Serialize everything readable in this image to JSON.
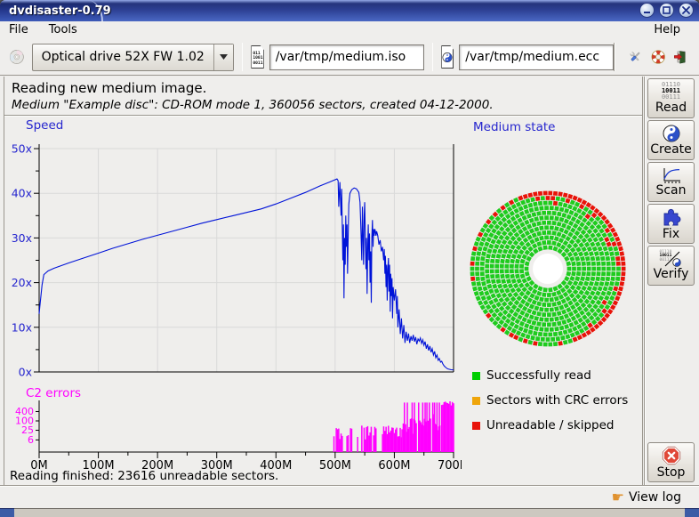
{
  "window": {
    "title": "dvdisaster-0.79"
  },
  "menu": {
    "file": "File",
    "tools": "Tools",
    "help": "Help"
  },
  "toolbar": {
    "drive": {
      "value": "Optical drive 52X FW 1.02"
    },
    "iso": {
      "value": "/var/tmp/medium.iso",
      "icon_lines": [
        "011",
        "10011",
        "00111"
      ]
    },
    "ecc": {
      "value": "/var/tmp/medium.ecc"
    }
  },
  "header": {
    "line1": "Reading new medium image.",
    "line2": "Medium \"Example disc\": CD-ROM mode 1, 360056 sectors, created 04-12-2000."
  },
  "sidebar": {
    "read": "Read",
    "create": "Create",
    "scan": "Scan",
    "fix": "Fix",
    "verify": "Verify",
    "stop": "Stop",
    "read_icon_lines": [
      "01110",
      "10011",
      "00111"
    ]
  },
  "status_line": "Reading finished: 23616 unreadable sectors.",
  "footer": {
    "view_log": "View log"
  },
  "colors": {
    "accent_blue": "#2525ce",
    "speed_line": "#0013d8",
    "c2_magenta": "#ff00ff",
    "grid": "#d9d9d9",
    "panel_bg": "#efeeec"
  },
  "chart_data": [
    {
      "type": "line",
      "title": "Speed",
      "color": "#0013d8",
      "label_color": "#2525ce",
      "x_range_M": [
        0,
        700
      ],
      "y_range": [
        0,
        50
      ],
      "grid": true,
      "y_ticks": [
        {
          "v": 0,
          "label": "0x"
        },
        {
          "v": 10,
          "label": "10x"
        },
        {
          "v": 20,
          "label": "20x"
        },
        {
          "v": 30,
          "label": "30x"
        },
        {
          "v": 40,
          "label": "40x"
        },
        {
          "v": 50,
          "label": "50x"
        }
      ],
      "x_ticks": [
        {
          "v": 0,
          "label": "0M"
        },
        {
          "v": 100,
          "label": "100M"
        },
        {
          "v": 200,
          "label": "200M"
        },
        {
          "v": 300,
          "label": "300M"
        },
        {
          "v": 400,
          "label": "400M"
        },
        {
          "v": 500,
          "label": "500M"
        },
        {
          "v": 600,
          "label": "600M"
        },
        {
          "v": 700,
          "label": "700M"
        }
      ],
      "points_M_speed": [
        [
          0,
          13
        ],
        [
          1,
          14.5
        ],
        [
          3,
          17
        ],
        [
          5,
          19.5
        ],
        [
          8,
          21.8
        ],
        [
          15,
          22.6
        ],
        [
          25,
          23.2
        ],
        [
          50,
          24.4
        ],
        [
          75,
          25.5
        ],
        [
          100,
          26.6
        ],
        [
          125,
          27.7
        ],
        [
          150,
          28.7
        ],
        [
          175,
          29.7
        ],
        [
          200,
          30.6
        ],
        [
          225,
          31.5
        ],
        [
          250,
          32.4
        ],
        [
          275,
          33.3
        ],
        [
          300,
          34.1
        ],
        [
          325,
          34.9
        ],
        [
          350,
          35.7
        ],
        [
          375,
          36.5
        ],
        [
          400,
          37.6
        ],
        [
          425,
          38.9
        ],
        [
          450,
          40.2
        ],
        [
          475,
          41.7
        ],
        [
          490,
          42.5
        ],
        [
          503,
          43.2
        ],
        [
          505,
          42.8
        ],
        [
          506,
          37
        ],
        [
          508,
          42.5
        ],
        [
          510,
          35
        ],
        [
          511,
          41
        ],
        [
          513,
          25
        ],
        [
          514,
          33
        ],
        [
          515,
          16.5
        ],
        [
          516,
          30
        ],
        [
          517,
          24
        ],
        [
          518,
          35
        ],
        [
          519,
          28
        ],
        [
          520,
          33
        ],
        [
          521,
          22
        ],
        [
          522,
          30
        ],
        [
          523,
          37.5
        ],
        [
          525,
          40
        ],
        [
          528,
          40.8
        ],
        [
          532,
          41.2
        ],
        [
          536,
          41
        ],
        [
          540,
          40.2
        ],
        [
          542,
          38
        ],
        [
          543,
          34
        ],
        [
          544,
          30
        ],
        [
          545,
          25
        ],
        [
          546,
          37
        ],
        [
          547,
          31
        ],
        [
          548,
          24
        ],
        [
          549,
          35
        ],
        [
          550,
          38
        ],
        [
          551,
          30
        ],
        [
          552,
          23
        ],
        [
          553,
          30
        ],
        [
          554,
          17.5
        ],
        [
          555,
          28
        ],
        [
          556,
          33
        ],
        [
          557,
          25
        ],
        [
          558,
          31
        ],
        [
          559,
          20
        ],
        [
          560,
          27
        ],
        [
          561,
          15.5
        ],
        [
          562,
          30
        ],
        [
          563,
          34
        ],
        [
          564,
          28
        ],
        [
          565,
          32
        ],
        [
          566,
          30.5
        ],
        [
          567,
          32
        ],
        [
          568,
          31.5
        ],
        [
          569,
          30.5
        ],
        [
          570,
          31.5
        ],
        [
          572,
          30.5
        ],
        [
          574,
          28.5
        ],
        [
          576,
          29.5
        ],
        [
          578,
          27
        ],
        [
          580,
          28
        ],
        [
          582,
          25
        ],
        [
          583,
          27.5
        ],
        [
          584,
          22
        ],
        [
          585,
          26
        ],
        [
          586,
          19
        ],
        [
          587,
          24
        ],
        [
          588,
          16
        ],
        [
          589,
          23
        ],
        [
          590,
          25.5
        ],
        [
          591,
          18
        ],
        [
          592,
          24
        ],
        [
          593,
          13.5
        ],
        [
          594,
          22
        ],
        [
          595,
          17
        ],
        [
          596,
          21
        ],
        [
          597,
          12
        ],
        [
          598,
          19
        ],
        [
          600,
          16
        ],
        [
          602,
          18.5
        ],
        [
          604,
          13
        ],
        [
          605,
          17
        ],
        [
          606,
          10
        ],
        [
          608,
          14
        ],
        [
          610,
          8.5
        ],
        [
          612,
          12
        ],
        [
          614,
          7.5
        ],
        [
          616,
          10.5
        ],
        [
          618,
          6.5
        ],
        [
          620,
          9
        ],
        [
          622,
          7
        ],
        [
          624,
          8.6
        ],
        [
          626,
          6.5
        ],
        [
          628,
          8
        ],
        [
          630,
          7
        ],
        [
          632,
          8.3
        ],
        [
          634,
          6.8
        ],
        [
          636,
          7.8
        ],
        [
          638,
          6.2
        ],
        [
          640,
          7.4
        ],
        [
          642,
          6.9
        ],
        [
          644,
          7.6
        ],
        [
          646,
          6.4
        ],
        [
          648,
          7.2
        ],
        [
          650,
          6
        ],
        [
          652,
          6.8
        ],
        [
          654,
          5.2
        ],
        [
          656,
          6.2
        ],
        [
          658,
          4.8
        ],
        [
          660,
          5.8
        ],
        [
          662,
          4.4
        ],
        [
          664,
          5.2
        ],
        [
          666,
          3.8
        ],
        [
          668,
          4.6
        ],
        [
          670,
          3.2
        ],
        [
          672,
          3.8
        ],
        [
          674,
          2.6
        ],
        [
          676,
          3
        ],
        [
          678,
          2.2
        ],
        [
          680,
          2.4
        ],
        [
          682,
          1.8
        ],
        [
          684,
          1.4
        ],
        [
          686,
          1.1
        ],
        [
          688,
          0.9
        ],
        [
          690,
          0.7
        ],
        [
          693,
          0.6
        ],
        [
          696,
          0.5
        ],
        [
          700,
          0.45
        ]
      ]
    },
    {
      "type": "bar",
      "title": "C2 errors",
      "color": "#ff00ff",
      "scale": "log",
      "x_range_M": [
        0,
        700
      ],
      "y_ticks": [
        {
          "v": 400,
          "label": "400"
        },
        {
          "v": 100,
          "label": "100"
        },
        {
          "v": 25,
          "label": "25"
        },
        {
          "v": 6,
          "label": "6"
        }
      ],
      "x_ticks": [
        {
          "v": 0,
          "label": "0M"
        },
        {
          "v": 100,
          "label": "100M"
        },
        {
          "v": 200,
          "label": "200M"
        },
        {
          "v": 300,
          "label": "300M"
        },
        {
          "v": 400,
          "label": "400M"
        },
        {
          "v": 500,
          "label": "500M"
        },
        {
          "v": 600,
          "label": "600M"
        },
        {
          "v": 700,
          "label": "700M"
        }
      ],
      "clusters": [
        {
          "from": 490,
          "to": 500,
          "density": 0.45,
          "lo": 4,
          "hi": 28
        },
        {
          "from": 500,
          "to": 512,
          "density": 0.85,
          "lo": 6,
          "hi": 35
        },
        {
          "from": 514,
          "to": 519,
          "density": 0.35,
          "lo": 4,
          "hi": 22
        },
        {
          "from": 520,
          "to": 528,
          "density": 0.7,
          "lo": 6,
          "hi": 35
        },
        {
          "from": 536,
          "to": 539,
          "density": 0.3,
          "lo": 4,
          "hi": 10
        },
        {
          "from": 545,
          "to": 570,
          "density": 0.8,
          "lo": 6,
          "hi": 50
        },
        {
          "from": 580,
          "to": 612,
          "density": 0.8,
          "lo": 8,
          "hi": 50
        },
        {
          "from": 613,
          "to": 626,
          "density": 0.6,
          "lo": 10,
          "hi": 70
        },
        {
          "from": 627,
          "to": 662,
          "density": 0.85,
          "lo": 10,
          "hi": 150
        },
        {
          "from": 663,
          "to": 679,
          "density": 0.9,
          "lo": 15,
          "hi": 300
        },
        {
          "from": 680,
          "to": 700,
          "density": 1,
          "lo": 900,
          "hi": 1800
        }
      ],
      "spikes_at_M": [
        617,
        622,
        630,
        634,
        641,
        648,
        652,
        655,
        659,
        665,
        668,
        672,
        676
      ],
      "spike_value": 1500
    },
    {
      "type": "disc-map",
      "title": "Medium state",
      "rings": 12,
      "r0": 24,
      "ring_gap": 5.55,
      "cell": 4.7,
      "hole_r": 17,
      "green": "#1ecb1e",
      "red": "#e81309",
      "red_arcs": [
        {
          "ring": 11,
          "from": -72,
          "to": 112
        }
      ],
      "red_cells": [
        [
          11,
          118
        ],
        [
          11,
          126
        ],
        [
          11,
          133
        ],
        [
          11,
          141
        ],
        [
          11,
          152
        ],
        [
          11,
          163
        ],
        [
          11,
          176
        ],
        [
          11,
          -172
        ],
        [
          11,
          -140
        ],
        [
          11,
          -128
        ],
        [
          11,
          -117
        ],
        [
          11,
          -108
        ],
        [
          11,
          -99
        ],
        [
          11,
          -80
        ],
        [
          10,
          100
        ],
        [
          10,
          88
        ],
        [
          10,
          74
        ],
        [
          10,
          60
        ],
        [
          10,
          48
        ],
        [
          10,
          34
        ],
        [
          10,
          20
        ],
        [
          10,
          6
        ],
        [
          10,
          -16
        ],
        [
          10,
          -38
        ],
        [
          10,
          -54
        ],
        [
          9,
          82
        ],
        [
          9,
          52
        ],
        [
          9,
          24
        ],
        [
          9,
          -30
        ]
      ],
      "legend": [
        {
          "label": "Successfully read",
          "color": "#00ce00"
        },
        {
          "label": "Sectors with CRC errors",
          "color": "#efa50a"
        },
        {
          "label": "Unreadable / skipped",
          "color": "#e81309"
        }
      ]
    }
  ]
}
